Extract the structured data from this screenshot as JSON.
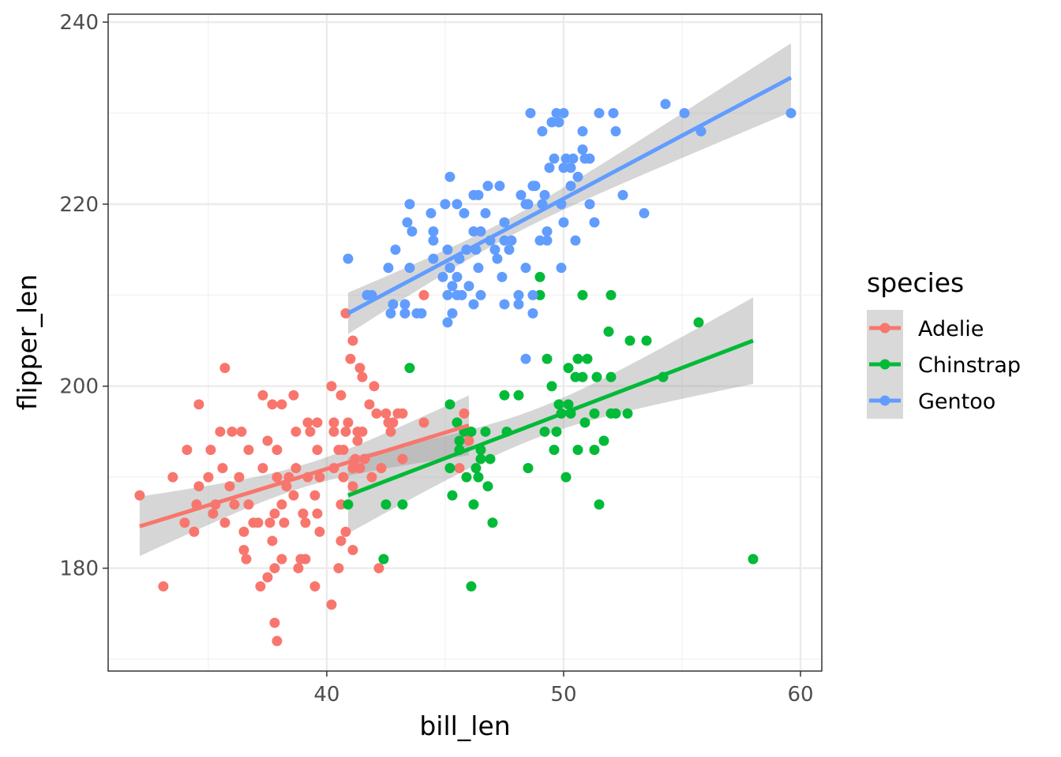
{
  "chart_data": {
    "type": "scatter",
    "title": "",
    "xlabel": "bill_len",
    "ylabel": "flipper_len",
    "xlim": [
      30.77,
      60.9
    ],
    "ylim": [
      168.7,
      240.87
    ],
    "x_ticks": [
      40,
      50,
      60
    ],
    "y_ticks": [
      180,
      200,
      220,
      240
    ],
    "x_tick_labels": [
      "40",
      "50",
      "60"
    ],
    "y_tick_labels": [
      "180",
      "200",
      "220",
      "240"
    ],
    "grid": true,
    "legend": {
      "title": "species",
      "placement": "right"
    },
    "smooth": {
      "method": "lm",
      "se": true,
      "ribbon_color": "#999999"
    },
    "series": [
      {
        "name": "Adelie",
        "color": "#F8766D",
        "line": [
          [
            32.1,
            184.6
          ],
          [
            46.0,
            195.7
          ]
        ],
        "points": [
          [
            32.1,
            188
          ],
          [
            33.1,
            178
          ],
          [
            33.5,
            190
          ],
          [
            34.0,
            185
          ],
          [
            34.1,
            193
          ],
          [
            34.4,
            184
          ],
          [
            34.5,
            187
          ],
          [
            34.6,
            198
          ],
          [
            34.6,
            189
          ],
          [
            35.0,
            190
          ],
          [
            35.1,
            193
          ],
          [
            35.2,
            186
          ],
          [
            35.3,
            187
          ],
          [
            35.5,
            195
          ],
          [
            35.6,
            191
          ],
          [
            35.7,
            202
          ],
          [
            35.7,
            185
          ],
          [
            35.9,
            189
          ],
          [
            36.0,
            195
          ],
          [
            36.1,
            187
          ],
          [
            36.3,
            190
          ],
          [
            36.4,
            195
          ],
          [
            36.5,
            184
          ],
          [
            36.5,
            182
          ],
          [
            36.6,
            181
          ],
          [
            36.7,
            193
          ],
          [
            36.7,
            187
          ],
          [
            36.9,
            185
          ],
          [
            37.1,
            185
          ],
          [
            37.2,
            178
          ],
          [
            37.3,
            191
          ],
          [
            37.3,
            199
          ],
          [
            37.5,
            179
          ],
          [
            37.5,
            194
          ],
          [
            37.6,
            185
          ],
          [
            37.7,
            198
          ],
          [
            37.7,
            183
          ],
          [
            37.8,
            186
          ],
          [
            37.8,
            180
          ],
          [
            37.8,
            174
          ],
          [
            37.9,
            193
          ],
          [
            37.9,
            172
          ],
          [
            37.9,
            190
          ],
          [
            38.1,
            198
          ],
          [
            38.1,
            187
          ],
          [
            38.1,
            181
          ],
          [
            38.2,
            185
          ],
          [
            38.3,
            189
          ],
          [
            38.4,
            190
          ],
          [
            38.6,
            188
          ],
          [
            38.6,
            199
          ],
          [
            38.7,
            191
          ],
          [
            38.7,
            195
          ],
          [
            38.8,
            180
          ],
          [
            38.9,
            181
          ],
          [
            39.0,
            186
          ],
          [
            39.1,
            185
          ],
          [
            39.1,
            181
          ],
          [
            39.2,
            196
          ],
          [
            39.2,
            190
          ],
          [
            39.3,
            195
          ],
          [
            39.5,
            188
          ],
          [
            39.5,
            178
          ],
          [
            39.6,
            196
          ],
          [
            39.6,
            186
          ],
          [
            39.6,
            193
          ],
          [
            39.7,
            190
          ],
          [
            39.7,
            184
          ],
          [
            40.2,
            176
          ],
          [
            40.2,
            200
          ],
          [
            40.3,
            191
          ],
          [
            40.3,
            195
          ],
          [
            40.3,
            196
          ],
          [
            40.5,
            193
          ],
          [
            40.5,
            180
          ],
          [
            40.6,
            183
          ],
          [
            40.6,
            187
          ],
          [
            40.6,
            199
          ],
          [
            40.7,
            193
          ],
          [
            40.7,
            190
          ],
          [
            40.8,
            208
          ],
          [
            40.8,
            195
          ],
          [
            40.8,
            184
          ],
          [
            40.9,
            196
          ],
          [
            41.0,
            203
          ],
          [
            41.1,
            191
          ],
          [
            41.1,
            182
          ],
          [
            41.1,
            205
          ],
          [
            41.1,
            189
          ],
          [
            41.2,
            192
          ],
          [
            41.3,
            195
          ],
          [
            41.3,
            194
          ],
          [
            41.4,
            202
          ],
          [
            41.4,
            191
          ],
          [
            41.5,
            195
          ],
          [
            41.5,
            201
          ],
          [
            41.6,
            192
          ],
          [
            41.8,
            198
          ],
          [
            41.9,
            190
          ],
          [
            42.0,
            200
          ],
          [
            42.1,
            197
          ],
          [
            42.2,
            180
          ],
          [
            42.3,
            191
          ],
          [
            42.5,
            197
          ],
          [
            42.6,
            196
          ],
          [
            42.7,
            195
          ],
          [
            42.8,
            196
          ],
          [
            43.0,
            197
          ],
          [
            43.2,
            192
          ],
          [
            43.2,
            197
          ],
          [
            44.1,
            210
          ],
          [
            44.1,
            196
          ],
          [
            45.6,
            191
          ],
          [
            45.8,
            197
          ],
          [
            46.0,
            194
          ]
        ]
      },
      {
        "name": "Chinstrap",
        "color": "#00BA38",
        "line": [
          [
            40.9,
            188.0
          ],
          [
            58.0,
            205.0
          ]
        ],
        "points": [
          [
            40.9,
            187
          ],
          [
            42.4,
            181
          ],
          [
            42.5,
            187
          ],
          [
            43.2,
            187
          ],
          [
            43.5,
            202
          ],
          [
            45.2,
            198
          ],
          [
            45.2,
            191
          ],
          [
            45.3,
            188
          ],
          [
            45.5,
            196
          ],
          [
            45.6,
            194
          ],
          [
            45.6,
            193
          ],
          [
            45.8,
            195
          ],
          [
            45.9,
            190
          ],
          [
            46.1,
            178
          ],
          [
            46.1,
            195
          ],
          [
            46.2,
            187
          ],
          [
            46.3,
            191
          ],
          [
            46.4,
            190
          ],
          [
            46.5,
            192
          ],
          [
            46.5,
            193
          ],
          [
            46.7,
            195
          ],
          [
            46.8,
            189
          ],
          [
            46.9,
            192
          ],
          [
            47.0,
            185
          ],
          [
            47.5,
            199
          ],
          [
            47.6,
            195
          ],
          [
            48.1,
            199
          ],
          [
            48.5,
            191
          ],
          [
            49.0,
            212
          ],
          [
            49.0,
            210
          ],
          [
            49.2,
            195
          ],
          [
            49.3,
            203
          ],
          [
            49.5,
            200
          ],
          [
            49.6,
            193
          ],
          [
            49.7,
            195
          ],
          [
            49.8,
            198
          ],
          [
            49.9,
            197
          ],
          [
            50.1,
            190
          ],
          [
            50.2,
            202
          ],
          [
            50.2,
            198
          ],
          [
            50.3,
            197
          ],
          [
            50.5,
            201
          ],
          [
            50.6,
            193
          ],
          [
            50.6,
            203
          ],
          [
            50.8,
            201
          ],
          [
            50.8,
            210
          ],
          [
            50.9,
            196
          ],
          [
            51.0,
            203
          ],
          [
            51.3,
            197
          ],
          [
            51.3,
            193
          ],
          [
            51.4,
            201
          ],
          [
            51.5,
            187
          ],
          [
            51.7,
            194
          ],
          [
            51.9,
            206
          ],
          [
            52.0,
            210
          ],
          [
            52.0,
            197
          ],
          [
            52.0,
            201
          ],
          [
            52.2,
            197
          ],
          [
            52.7,
            197
          ],
          [
            52.8,
            205
          ],
          [
            53.5,
            205
          ],
          [
            54.2,
            201
          ],
          [
            55.7,
            207
          ],
          [
            58.0,
            181
          ]
        ]
      },
      {
        "name": "Gentoo",
        "color": "#619CFF",
        "line": [
          [
            40.9,
            208.0
          ],
          [
            59.6,
            233.9
          ]
        ],
        "points": [
          [
            40.9,
            214
          ],
          [
            41.7,
            210
          ],
          [
            41.9,
            210
          ],
          [
            42.6,
            213
          ],
          [
            42.7,
            208
          ],
          [
            42.8,
            209
          ],
          [
            42.9,
            215
          ],
          [
            43.3,
            208
          ],
          [
            43.3,
            209
          ],
          [
            43.4,
            218
          ],
          [
            43.5,
            220
          ],
          [
            43.5,
            213
          ],
          [
            43.6,
            217
          ],
          [
            43.8,
            208
          ],
          [
            44.0,
            208
          ],
          [
            44.4,
            219
          ],
          [
            44.5,
            214
          ],
          [
            44.5,
            216
          ],
          [
            44.5,
            217
          ],
          [
            44.9,
            212
          ],
          [
            45.0,
            220
          ],
          [
            45.1,
            207
          ],
          [
            45.1,
            210
          ],
          [
            45.1,
            215
          ],
          [
            45.2,
            223
          ],
          [
            45.2,
            213
          ],
          [
            45.3,
            208
          ],
          [
            45.3,
            211
          ],
          [
            45.5,
            210
          ],
          [
            45.5,
            220
          ],
          [
            45.5,
            212
          ],
          [
            45.6,
            214
          ],
          [
            45.7,
            210
          ],
          [
            45.8,
            219
          ],
          [
            45.9,
            215
          ],
          [
            46.0,
            211
          ],
          [
            46.2,
            221
          ],
          [
            46.2,
            209
          ],
          [
            46.2,
            217
          ],
          [
            46.3,
            215
          ],
          [
            46.4,
            221
          ],
          [
            46.4,
            213
          ],
          [
            46.5,
            217
          ],
          [
            46.5,
            210
          ],
          [
            46.7,
            219
          ],
          [
            46.8,
            222
          ],
          [
            46.9,
            216
          ],
          [
            47.1,
            215
          ],
          [
            47.2,
            214
          ],
          [
            47.3,
            222
          ],
          [
            47.4,
            212
          ],
          [
            47.5,
            218
          ],
          [
            47.5,
            209
          ],
          [
            47.5,
            216
          ],
          [
            47.7,
            215
          ],
          [
            47.8,
            216
          ],
          [
            48.1,
            210
          ],
          [
            48.1,
            209
          ],
          [
            48.2,
            221
          ],
          [
            48.4,
            213
          ],
          [
            48.4,
            203
          ],
          [
            48.4,
            220
          ],
          [
            48.5,
            220
          ],
          [
            48.6,
            230
          ],
          [
            48.7,
            210
          ],
          [
            48.7,
            208
          ],
          [
            48.7,
            222
          ],
          [
            48.8,
            222
          ],
          [
            49.0,
            216
          ],
          [
            49.1,
            228
          ],
          [
            49.1,
            220
          ],
          [
            49.2,
            221
          ],
          [
            49.3,
            217
          ],
          [
            49.3,
            216
          ],
          [
            49.4,
            224
          ],
          [
            49.5,
            229
          ],
          [
            49.6,
            225
          ],
          [
            49.7,
            230
          ],
          [
            49.8,
            229
          ],
          [
            49.9,
            213
          ],
          [
            49.9,
            220
          ],
          [
            50.0,
            224
          ],
          [
            50.0,
            218
          ],
          [
            50.0,
            230
          ],
          [
            50.1,
            225
          ],
          [
            50.3,
            224
          ],
          [
            50.3,
            222
          ],
          [
            50.4,
            225
          ],
          [
            50.5,
            216
          ],
          [
            50.6,
            223
          ],
          [
            50.8,
            228
          ],
          [
            50.8,
            226
          ],
          [
            50.9,
            225
          ],
          [
            51.1,
            225
          ],
          [
            51.1,
            220
          ],
          [
            51.3,
            218
          ],
          [
            51.5,
            230
          ],
          [
            52.1,
            230
          ],
          [
            52.2,
            228
          ],
          [
            52.5,
            221
          ],
          [
            53.4,
            219
          ],
          [
            54.3,
            231
          ],
          [
            55.1,
            230
          ],
          [
            55.8,
            228
          ],
          [
            59.6,
            230
          ]
        ]
      }
    ]
  }
}
